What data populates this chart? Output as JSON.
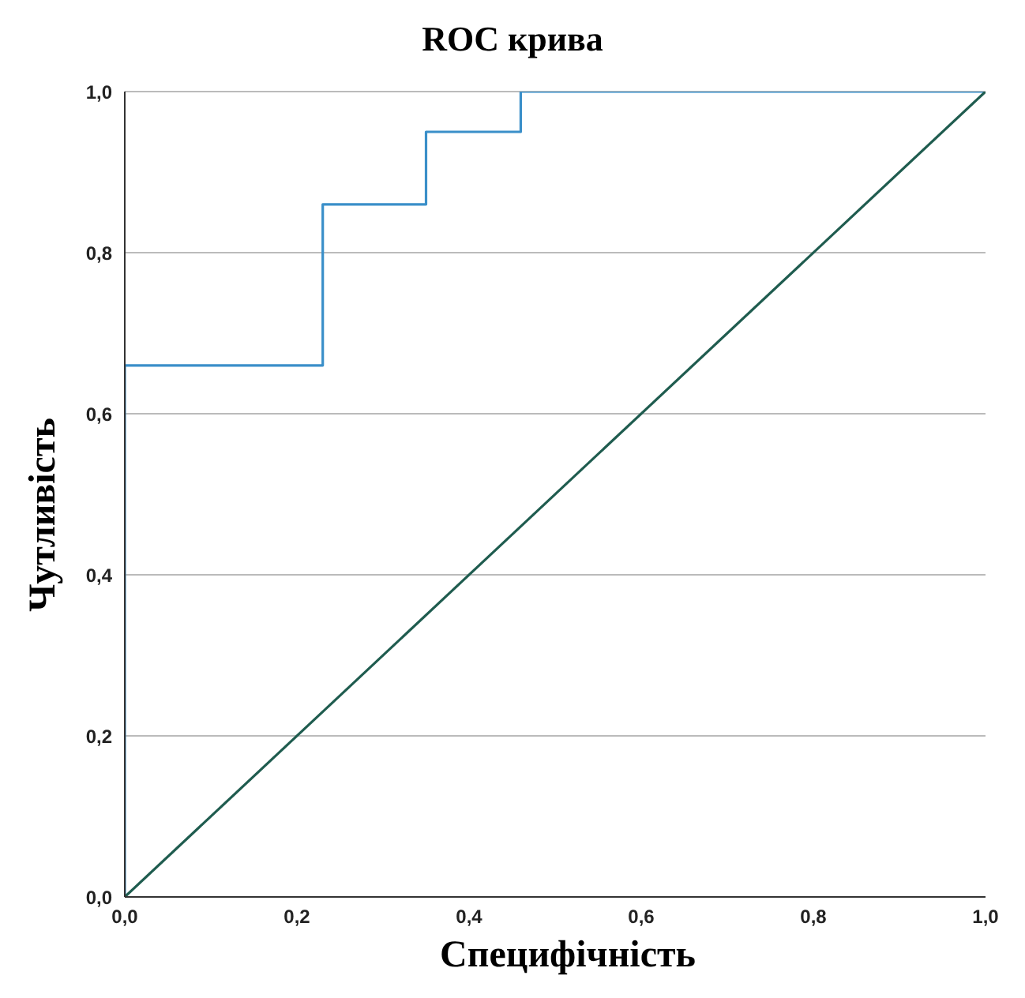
{
  "chart_data": {
    "type": "line",
    "title": "ROC крива",
    "xlabel": "Специфічність",
    "ylabel": "Чутливість",
    "xlim": [
      0,
      1
    ],
    "ylim": [
      0,
      1
    ],
    "xticks": [
      {
        "value": 0,
        "label": "0,0"
      },
      {
        "value": 0.2,
        "label": "0,2"
      },
      {
        "value": 0.4,
        "label": "0,4"
      },
      {
        "value": 0.6,
        "label": "0,6"
      },
      {
        "value": 0.8,
        "label": "0,8"
      },
      {
        "value": 1,
        "label": "1,0"
      }
    ],
    "yticks": [
      {
        "value": 0,
        "label": "0,0"
      },
      {
        "value": 0.2,
        "label": "0,2"
      },
      {
        "value": 0.4,
        "label": "0,4"
      },
      {
        "value": 0.6,
        "label": "0,6"
      },
      {
        "value": 0.8,
        "label": "0,8"
      },
      {
        "value": 1,
        "label": "1,0"
      }
    ],
    "grid": "y",
    "legend": false,
    "marker": "none",
    "line_style": "solid",
    "series": [
      {
        "color": "#3a8fc9",
        "x": [
          0,
          0,
          0.23,
          0.23,
          0.35,
          0.35,
          0.46,
          0.46,
          1
        ],
        "values": [
          0,
          0.66,
          0.66,
          0.86,
          0.86,
          0.95,
          0.95,
          1,
          1
        ]
      },
      {
        "color": "#1f5c4f",
        "x": [
          0,
          1
        ],
        "values": [
          0,
          1
        ]
      }
    ]
  }
}
